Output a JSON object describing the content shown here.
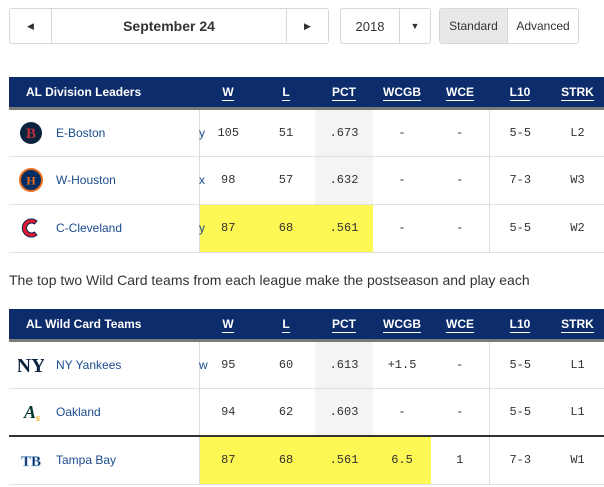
{
  "controls": {
    "date": "September 24",
    "prev_icon": "◀",
    "next_icon": "▶",
    "year": "2018",
    "caret_icon": "▼",
    "view_standard": "Standard",
    "view_advanced": "Advanced"
  },
  "columns": [
    "W",
    "L",
    "PCT",
    "WCGB",
    "WCE",
    "L10",
    "STRK"
  ],
  "division": {
    "title": "AL Division Leaders",
    "rows": [
      {
        "team": "E-Boston",
        "flag": "y",
        "logo": "red-sox-logo",
        "W": "105",
        "L": "51",
        "PCT": ".673",
        "WCGB": "-",
        "WCE": "-",
        "L10": "5-5",
        "STRK": "L2"
      },
      {
        "team": "W-Houston",
        "flag": "x",
        "logo": "astros-logo",
        "W": "98",
        "L": "57",
        "PCT": ".632",
        "WCGB": "-",
        "WCE": "-",
        "L10": "7-3",
        "STRK": "W3"
      },
      {
        "team": "C-Cleveland",
        "flag": "y",
        "logo": "indians-logo",
        "W": "87",
        "L": "68",
        "PCT": ".561",
        "WCGB": "-",
        "WCE": "-",
        "L10": "5-5",
        "STRK": "W2"
      }
    ]
  },
  "note": "The top two Wild Card teams from each league make the postseason and play each",
  "wildcard": {
    "title": "AL Wild Card Teams",
    "rows": [
      {
        "team": "NY Yankees",
        "flag": "w",
        "logo": "yankees-logo",
        "W": "95",
        "L": "60",
        "PCT": ".613",
        "WCGB": "+1.5",
        "WCE": "-",
        "L10": "5-5",
        "STRK": "L1"
      },
      {
        "team": "Oakland",
        "flag": "",
        "logo": "athletics-logo",
        "W": "94",
        "L": "62",
        "PCT": ".603",
        "WCGB": "-",
        "WCE": "-",
        "L10": "5-5",
        "STRK": "L1"
      },
      {
        "team": "Tampa Bay",
        "flag": "",
        "logo": "rays-logo",
        "W": "87",
        "L": "68",
        "PCT": ".561",
        "WCGB": "6.5",
        "WCE": "1",
        "L10": "7-3",
        "STRK": "W1"
      }
    ]
  },
  "colors": {
    "header": "#0d2c6b",
    "highlight": "#fdf853",
    "link": "#1a4b8f"
  }
}
